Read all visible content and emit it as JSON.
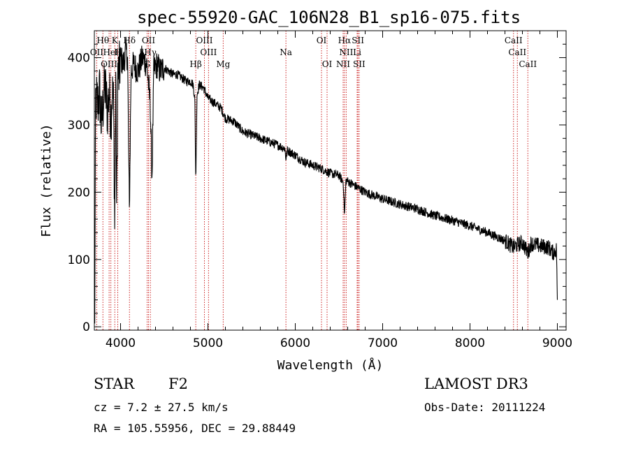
{
  "chart_data": {
    "type": "line",
    "title": "spec-55920-GAC_106N28_B1_sp16-075.fits",
    "xlabel": "Wavelength (Å)",
    "ylabel": "Flux (relative)",
    "xlim": [
      3700,
      9100
    ],
    "ylim": [
      -5,
      440
    ],
    "x_ticks": [
      4000,
      5000,
      6000,
      7000,
      8000,
      9000
    ],
    "y_ticks": [
      0,
      100,
      200,
      300,
      400
    ],
    "line_color": "#000000",
    "marker_color": "#cc2222",
    "spectrum_anchors": {
      "x": [
        3705,
        3712,
        3720,
        3740,
        3760,
        3780,
        3800,
        3820,
        3835,
        3850,
        3870,
        3889,
        3905,
        3920,
        3933,
        3945,
        3955,
        3968,
        3980,
        4000,
        4030,
        4060,
        4080,
        4101,
        4120,
        4150,
        4200,
        4250,
        4300,
        4340,
        4360,
        4380,
        4420,
        4450,
        4500,
        4550,
        4600,
        4650,
        4700,
        4750,
        4800,
        4830,
        4850,
        4861,
        4875,
        4900,
        4950,
        5000,
        5050,
        5100,
        5150,
        5200,
        5300,
        5400,
        5500,
        5600,
        5700,
        5800,
        5880,
        5893,
        5910,
        6000,
        6100,
        6200,
        6300,
        6400,
        6500,
        6550,
        6563,
        6580,
        6650,
        6700,
        6800,
        6900,
        7000,
        7200,
        7400,
        7600,
        7800,
        8000,
        8200,
        8400,
        8498,
        8542,
        8600,
        8662,
        8700,
        8800,
        8900,
        8950,
        8990,
        9000
      ],
      "y": [
        5,
        300,
        340,
        330,
        350,
        300,
        330,
        360,
        340,
        320,
        350,
        310,
        350,
        330,
        150,
        380,
        160,
        380,
        370,
        400,
        390,
        410,
        400,
        170,
        380,
        390,
        380,
        400,
        390,
        330,
        220,
        380,
        390,
        380,
        385,
        380,
        375,
        375,
        370,
        365,
        365,
        360,
        340,
        215,
        345,
        360,
        355,
        340,
        335,
        330,
        325,
        310,
        305,
        290,
        285,
        280,
        275,
        270,
        265,
        250,
        262,
        255,
        245,
        240,
        235,
        228,
        225,
        215,
        165,
        218,
        212,
        208,
        200,
        195,
        190,
        182,
        175,
        165,
        158,
        150,
        140,
        128,
        118,
        122,
        125,
        110,
        124,
        120,
        118,
        110,
        115,
        40
      ]
    },
    "line_markers": [
      {
        "name": "Hθ",
        "x": 3798,
        "row": 0
      },
      {
        "name": "K",
        "x": 3934,
        "row": 0
      },
      {
        "name": "Hδ",
        "x": 4102,
        "row": 0
      },
      {
        "name": "OII",
        "x": 4320,
        "row": 0
      },
      {
        "name": "OIII",
        "x": 4960,
        "row": 0
      },
      {
        "name": "OI",
        "x": 6300,
        "row": 0
      },
      {
        "name": "Hα",
        "x": 6563,
        "row": 0
      },
      {
        "name": "SII",
        "x": 6717,
        "row": 0
      },
      {
        "name": "CaII",
        "x": 8498,
        "row": 0
      },
      {
        "name": "OII",
        "x": 3727,
        "row": 1
      },
      {
        "name": "HeI",
        "x": 3889,
        "row": 1
      },
      {
        "name": "H",
        "x": 3968,
        "row": 1
      },
      {
        "name": "Hγ",
        "x": 4341,
        "row": 1
      },
      {
        "name": "OIII",
        "x": 5007,
        "row": 1
      },
      {
        "name": "NII",
        "x": 6583,
        "row": 1
      },
      {
        "name": "Li",
        "x": 6708,
        "row": 1
      },
      {
        "name": "CaII",
        "x": 8542,
        "row": 1
      },
      {
        "name": "Na",
        "x": 5893,
        "row": 1
      },
      {
        "name": "OIII",
        "x": 3869,
        "row": 2
      },
      {
        "name": "G",
        "x": 4304,
        "row": 2
      },
      {
        "name": "Hβ",
        "x": 4861,
        "row": 2
      },
      {
        "name": "Mg",
        "x": 5175,
        "row": 2
      },
      {
        "name": "OI",
        "x": 6364,
        "row": 2
      },
      {
        "name": "NII",
        "x": 6548,
        "row": 2
      },
      {
        "name": "SII",
        "x": 6731,
        "row": 2
      },
      {
        "name": "CaII",
        "x": 8662,
        "row": 2
      }
    ]
  },
  "info": {
    "object_class": "STAR",
    "subclass": "F2",
    "redshift": "cz = 7.2 ± 27.5 km/s",
    "coords": "RA = 105.55956, DEC =  29.88449",
    "survey": "LAMOST DR3",
    "obs_date": "Obs-Date: 20111224"
  }
}
